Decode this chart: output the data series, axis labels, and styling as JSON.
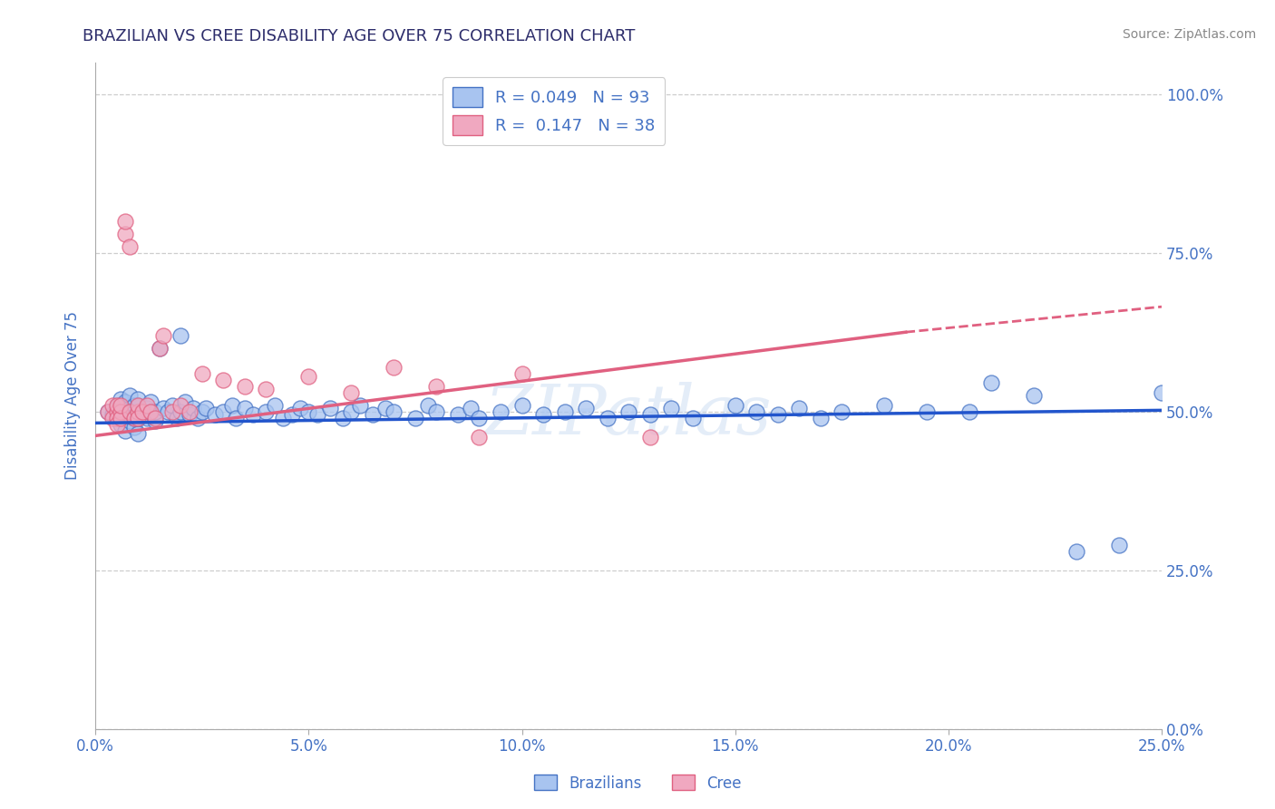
{
  "title": "BRAZILIAN VS CREE DISABILITY AGE OVER 75 CORRELATION CHART",
  "source": "Source: ZipAtlas.com",
  "ylabel": "Disability Age Over 75",
  "xlim": [
    0.0,
    0.25
  ],
  "ylim": [
    0.0,
    1.05
  ],
  "title_color": "#2d2d6b",
  "axis_color": "#4472c4",
  "background_color": "#ffffff",
  "grid_color": "#c8c8c8",
  "watermark": "ZIPAtlas",
  "legend_R1": "0.049",
  "legend_N1": "93",
  "legend_R2": "0.147",
  "legend_N2": "38",
  "blue_fill": "#a8c4f0",
  "blue_edge": "#4472c4",
  "pink_fill": "#f0a8c0",
  "pink_edge": "#e06080",
  "blue_line_color": "#2255cc",
  "pink_line_color": "#e06080",
  "brazil_line": [
    0.0,
    0.25,
    0.482,
    0.502
  ],
  "cree_solid": [
    0.0,
    0.19,
    0.462,
    0.625
  ],
  "cree_dash": [
    0.19,
    0.25,
    0.625,
    0.665
  ],
  "braz_x": [
    0.003,
    0.004,
    0.005,
    0.005,
    0.005,
    0.006,
    0.006,
    0.007,
    0.007,
    0.007,
    0.008,
    0.008,
    0.008,
    0.009,
    0.009,
    0.009,
    0.009,
    0.01,
    0.01,
    0.01,
    0.01,
    0.01,
    0.011,
    0.011,
    0.012,
    0.012,
    0.013,
    0.013,
    0.014,
    0.014,
    0.015,
    0.016,
    0.017,
    0.018,
    0.019,
    0.02,
    0.02,
    0.021,
    0.022,
    0.023,
    0.024,
    0.025,
    0.026,
    0.028,
    0.03,
    0.032,
    0.033,
    0.035,
    0.037,
    0.04,
    0.042,
    0.044,
    0.046,
    0.048,
    0.05,
    0.052,
    0.055,
    0.058,
    0.06,
    0.062,
    0.065,
    0.068,
    0.07,
    0.075,
    0.078,
    0.08,
    0.085,
    0.088,
    0.09,
    0.095,
    0.1,
    0.105,
    0.11,
    0.115,
    0.12,
    0.125,
    0.13,
    0.135,
    0.14,
    0.15,
    0.155,
    0.16,
    0.165,
    0.17,
    0.175,
    0.185,
    0.195,
    0.205,
    0.21,
    0.22,
    0.23,
    0.24,
    0.25
  ],
  "braz_y": [
    0.5,
    0.495,
    0.51,
    0.49,
    0.505,
    0.48,
    0.52,
    0.47,
    0.495,
    0.515,
    0.485,
    0.505,
    0.525,
    0.475,
    0.5,
    0.49,
    0.51,
    0.465,
    0.5,
    0.51,
    0.49,
    0.52,
    0.5,
    0.495,
    0.505,
    0.49,
    0.5,
    0.515,
    0.485,
    0.5,
    0.6,
    0.505,
    0.5,
    0.51,
    0.49,
    0.5,
    0.62,
    0.515,
    0.495,
    0.505,
    0.49,
    0.5,
    0.505,
    0.495,
    0.5,
    0.51,
    0.49,
    0.505,
    0.495,
    0.5,
    0.51,
    0.49,
    0.495,
    0.505,
    0.5,
    0.495,
    0.505,
    0.49,
    0.5,
    0.51,
    0.495,
    0.505,
    0.5,
    0.49,
    0.51,
    0.5,
    0.495,
    0.505,
    0.49,
    0.5,
    0.51,
    0.495,
    0.5,
    0.505,
    0.49,
    0.5,
    0.495,
    0.505,
    0.49,
    0.51,
    0.5,
    0.495,
    0.505,
    0.49,
    0.5,
    0.51,
    0.5,
    0.5,
    0.545,
    0.525,
    0.28,
    0.29,
    0.53
  ],
  "cree_x": [
    0.003,
    0.004,
    0.004,
    0.005,
    0.005,
    0.005,
    0.005,
    0.006,
    0.006,
    0.006,
    0.007,
    0.007,
    0.008,
    0.008,
    0.009,
    0.01,
    0.01,
    0.01,
    0.011,
    0.012,
    0.013,
    0.014,
    0.015,
    0.016,
    0.018,
    0.02,
    0.022,
    0.025,
    0.03,
    0.035,
    0.04,
    0.05,
    0.06,
    0.07,
    0.08,
    0.09,
    0.1,
    0.13
  ],
  "cree_y": [
    0.5,
    0.51,
    0.49,
    0.5,
    0.49,
    0.51,
    0.48,
    0.5,
    0.49,
    0.51,
    0.78,
    0.8,
    0.76,
    0.5,
    0.49,
    0.5,
    0.51,
    0.49,
    0.5,
    0.51,
    0.5,
    0.49,
    0.6,
    0.62,
    0.5,
    0.51,
    0.5,
    0.56,
    0.55,
    0.54,
    0.535,
    0.555,
    0.53,
    0.57,
    0.54,
    0.46,
    0.56,
    0.46
  ],
  "yticks": [
    0.0,
    0.25,
    0.5,
    0.75,
    1.0
  ],
  "ytick_labels": [
    "0.0%",
    "25.0%",
    "50.0%",
    "75.0%",
    "100.0%"
  ],
  "xticks": [
    0.0,
    0.05,
    0.1,
    0.15,
    0.2,
    0.25
  ],
  "xtick_labels": [
    "0.0%",
    "5.0%",
    "10.0%",
    "15.0%",
    "20.0%",
    "25.0%"
  ]
}
